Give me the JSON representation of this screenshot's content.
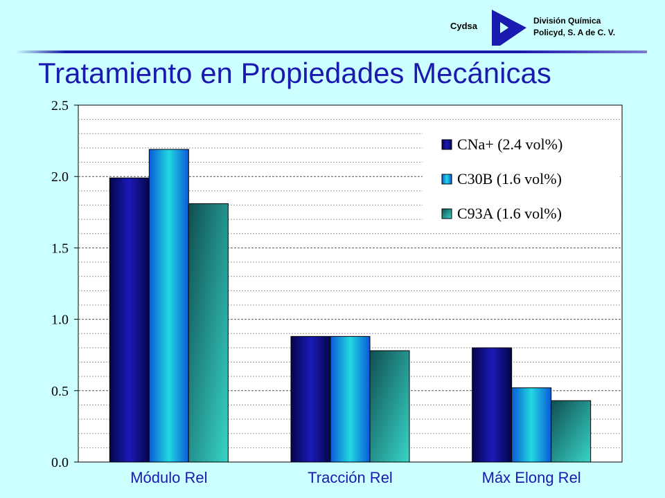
{
  "header": {
    "company": "Cydsa",
    "division_line1": "División Química",
    "division_line2": "Policyd, S. A de C. V."
  },
  "title": "Tratamiento en Propiedades Mecánicas",
  "colors": {
    "background": "#ccffff",
    "title": "#1a1ab0",
    "series_navy": "#0a0a6e",
    "series_blue": "#1e90ff",
    "series_teal": "#2a8f8a"
  },
  "chart_data": {
    "type": "bar",
    "categories": [
      "Módulo Rel",
      "Tracción Rel",
      "Máx Elong Rel"
    ],
    "series": [
      {
        "name": "CNa+ (2.4 vol%)",
        "values": [
          1.99,
          0.88,
          0.8
        ]
      },
      {
        "name": "C30B (1.6 vol%)",
        "values": [
          2.19,
          0.88,
          0.52
        ]
      },
      {
        "name": "C93A (1.6 vol%)",
        "values": [
          1.81,
          0.78,
          0.43
        ]
      }
    ],
    "ylim": [
      0,
      2.5
    ],
    "yticks": [
      "0.0",
      "0.5",
      "1.0",
      "1.5",
      "2.0",
      "2.5"
    ],
    "grid": true,
    "legend": "top-right",
    "title": "",
    "xlabel": "",
    "ylabel": ""
  }
}
